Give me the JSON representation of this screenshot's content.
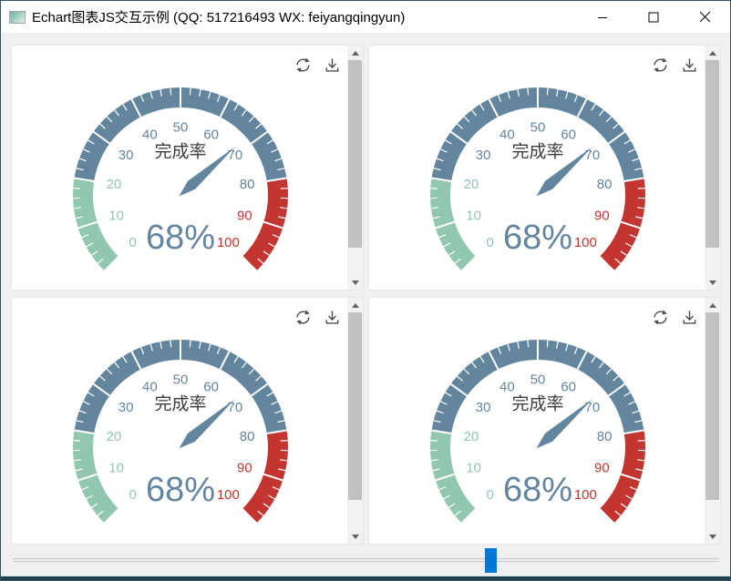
{
  "window": {
    "title": "Echart图表JS交互示例 (QQ: 517216493 WX: feiyangqingyun)",
    "controls": [
      "minimize-icon",
      "maximize-icon",
      "close-icon"
    ]
  },
  "colors": {
    "titlebar_bg": "#ffffff",
    "content_bg": "#f0f0f0",
    "window_border": "#37535f",
    "slider_thumb_blue": "#0078d7",
    "gauge_green": "#91c7ae",
    "gauge_blue": "#63869e",
    "gauge_red": "#c23531",
    "scrollbar_thumb": "#c1c1c1",
    "taskbar_strip": "#22404b"
  },
  "panel_toolbar": {
    "icons": [
      "refresh-icon",
      "download-icon"
    ]
  },
  "chart_data": [
    {
      "type": "gauge",
      "title": "完成率",
      "value": 68,
      "detail_label": "68%",
      "min": 0,
      "max": 100,
      "start_angle": 225,
      "end_angle": -45,
      "major_tick_interval": 10,
      "minor_tick_interval": 2,
      "tick_labels": [
        "0",
        "10",
        "20",
        "30",
        "40",
        "50",
        "60",
        "70",
        "80",
        "90",
        "100"
      ],
      "segments": [
        {
          "from": 0,
          "to": 20,
          "color": "#91c7ae"
        },
        {
          "from": 20,
          "to": 80,
          "color": "#63869e"
        },
        {
          "from": 80,
          "to": 100,
          "color": "#c23531"
        }
      ],
      "pointer_color": "#63869e",
      "title_color": "#3c3c3c",
      "detail_color": "#63869e"
    },
    {
      "type": "gauge",
      "title": "完成率",
      "value": 68,
      "detail_label": "68%",
      "min": 0,
      "max": 100,
      "start_angle": 225,
      "end_angle": -45,
      "major_tick_interval": 10,
      "minor_tick_interval": 2,
      "tick_labels": [
        "0",
        "10",
        "20",
        "30",
        "40",
        "50",
        "60",
        "70",
        "80",
        "90",
        "100"
      ],
      "segments": [
        {
          "from": 0,
          "to": 20,
          "color": "#91c7ae"
        },
        {
          "from": 20,
          "to": 80,
          "color": "#63869e"
        },
        {
          "from": 80,
          "to": 100,
          "color": "#c23531"
        }
      ],
      "pointer_color": "#63869e",
      "title_color": "#3c3c3c",
      "detail_color": "#63869e"
    },
    {
      "type": "gauge",
      "title": "完成率",
      "value": 68,
      "detail_label": "68%",
      "min": 0,
      "max": 100,
      "start_angle": 225,
      "end_angle": -45,
      "major_tick_interval": 10,
      "minor_tick_interval": 2,
      "tick_labels": [
        "0",
        "10",
        "20",
        "30",
        "40",
        "50",
        "60",
        "70",
        "80",
        "90",
        "100"
      ],
      "segments": [
        {
          "from": 0,
          "to": 20,
          "color": "#91c7ae"
        },
        {
          "from": 20,
          "to": 80,
          "color": "#63869e"
        },
        {
          "from": 80,
          "to": 100,
          "color": "#c23531"
        }
      ],
      "pointer_color": "#63869e",
      "title_color": "#3c3c3c",
      "detail_color": "#63869e"
    },
    {
      "type": "gauge",
      "title": "完成率",
      "value": 68,
      "detail_label": "68%",
      "min": 0,
      "max": 100,
      "start_angle": 225,
      "end_angle": -45,
      "major_tick_interval": 10,
      "minor_tick_interval": 2,
      "tick_labels": [
        "0",
        "10",
        "20",
        "30",
        "40",
        "50",
        "60",
        "70",
        "80",
        "90",
        "100"
      ],
      "segments": [
        {
          "from": 0,
          "to": 20,
          "color": "#91c7ae"
        },
        {
          "from": 20,
          "to": 80,
          "color": "#63869e"
        },
        {
          "from": 80,
          "to": 100,
          "color": "#c23531"
        }
      ],
      "pointer_color": "#63869e",
      "title_color": "#3c3c3c",
      "detail_color": "#63869e"
    }
  ]
}
